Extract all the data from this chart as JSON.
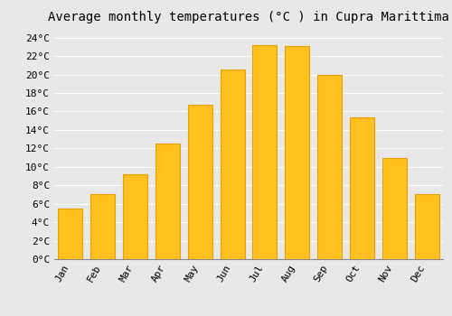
{
  "title": "Average monthly temperatures (°C ) in Cupra Marittima",
  "months": [
    "Jan",
    "Feb",
    "Mar",
    "Apr",
    "May",
    "Jun",
    "Jul",
    "Aug",
    "Sep",
    "Oct",
    "Nov",
    "Dec"
  ],
  "temperatures": [
    5.5,
    7.0,
    9.2,
    12.5,
    16.7,
    20.5,
    23.2,
    23.1,
    20.0,
    15.4,
    11.0,
    7.0
  ],
  "bar_color": "#FFC020",
  "bar_edge_color": "#E8A000",
  "ylim": [
    0,
    25
  ],
  "yticks": [
    0,
    2,
    4,
    6,
    8,
    10,
    12,
    14,
    16,
    18,
    20,
    22,
    24
  ],
  "background_color": "#E8E8E8",
  "grid_color": "#FFFFFF",
  "title_fontsize": 10,
  "tick_fontsize": 8,
  "font_family": "monospace",
  "bar_width": 0.75
}
